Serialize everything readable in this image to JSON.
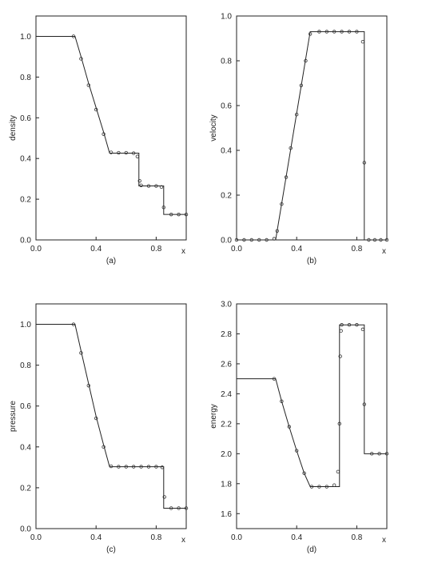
{
  "chart_data": [
    {
      "type": "line",
      "caption": "(a)",
      "xlabel": "x",
      "ylabel": "density",
      "xlim": [
        0,
        1
      ],
      "ylim": [
        0,
        1.1
      ],
      "xticks": [
        "0.0",
        "0.4",
        "0.8"
      ],
      "xtick_values": [
        0,
        0.4,
        0.8
      ],
      "yticks": [
        "0.0",
        "0.2",
        "0.4",
        "0.6",
        "0.8",
        "1.0"
      ],
      "ytick_values": [
        0,
        0.2,
        0.4,
        0.6,
        0.8,
        1.0
      ],
      "series": [
        {
          "style": "solid-line",
          "x": [
            0,
            0.26,
            0.3,
            0.35,
            0.4,
            0.45,
            0.49,
            0.685,
            0.685,
            0.85,
            0.85,
            1.0
          ],
          "y": [
            1.0,
            1.0,
            0.9,
            0.77,
            0.65,
            0.53,
            0.426,
            0.426,
            0.265,
            0.265,
            0.125,
            0.125
          ]
        },
        {
          "style": "markers",
          "x": [
            0.25,
            0.3,
            0.35,
            0.4,
            0.45,
            0.5,
            0.55,
            0.6,
            0.65,
            0.675,
            0.69,
            0.7,
            0.75,
            0.8,
            0.835,
            0.85,
            0.9,
            0.95,
            1.0
          ],
          "y": [
            1.0,
            0.89,
            0.76,
            0.64,
            0.52,
            0.43,
            0.428,
            0.428,
            0.426,
            0.41,
            0.29,
            0.268,
            0.265,
            0.265,
            0.26,
            0.16,
            0.125,
            0.125,
            0.125
          ]
        }
      ]
    },
    {
      "type": "line",
      "caption": "(b)",
      "xlabel": "x",
      "ylabel": "velocity",
      "xlim": [
        0,
        1
      ],
      "ylim": [
        0,
        1.0
      ],
      "xticks": [
        "0.0",
        "0.4",
        "0.8"
      ],
      "xtick_values": [
        0,
        0.4,
        0.8
      ],
      "yticks": [
        "0.0",
        "0.2",
        "0.4",
        "0.6",
        "0.8",
        "1.0"
      ],
      "ytick_values": [
        0,
        0.2,
        0.4,
        0.6,
        0.8,
        1.0
      ],
      "series": [
        {
          "style": "solid-line",
          "x": [
            0,
            0.26,
            0.49,
            0.85,
            0.85,
            1.0
          ],
          "y": [
            0,
            0,
            0.93,
            0.93,
            0,
            0
          ]
        },
        {
          "style": "markers",
          "x": [
            0,
            0.05,
            0.1,
            0.15,
            0.2,
            0.25,
            0.27,
            0.3,
            0.33,
            0.36,
            0.4,
            0.43,
            0.46,
            0.49,
            0.55,
            0.6,
            0.65,
            0.7,
            0.75,
            0.8,
            0.84,
            0.85,
            0.88,
            0.92,
            0.96,
            1.0
          ],
          "y": [
            0,
            0,
            0,
            0,
            0,
            0.005,
            0.04,
            0.16,
            0.28,
            0.41,
            0.56,
            0.69,
            0.8,
            0.92,
            0.93,
            0.93,
            0.93,
            0.93,
            0.93,
            0.93,
            0.885,
            0.345,
            0,
            0,
            0,
            0
          ]
        }
      ]
    },
    {
      "type": "line",
      "caption": "(c)",
      "xlabel": "x",
      "ylabel": "pressure",
      "xlim": [
        0,
        1
      ],
      "ylim": [
        0,
        1.1
      ],
      "xticks": [
        "0.0",
        "0.4",
        "0.8"
      ],
      "xtick_values": [
        0,
        0.4,
        0.8
      ],
      "yticks": [
        "0.0",
        "0.2",
        "0.4",
        "0.6",
        "0.8",
        "1.0"
      ],
      "ytick_values": [
        0,
        0.2,
        0.4,
        0.6,
        0.8,
        1.0
      ],
      "series": [
        {
          "style": "solid-line",
          "x": [
            0,
            0.26,
            0.3,
            0.35,
            0.4,
            0.45,
            0.49,
            0.85,
            0.85,
            1.0
          ],
          "y": [
            1.0,
            1.0,
            0.87,
            0.71,
            0.55,
            0.41,
            0.303,
            0.303,
            0.1,
            0.1
          ]
        },
        {
          "style": "markers",
          "x": [
            0.25,
            0.3,
            0.35,
            0.4,
            0.45,
            0.5,
            0.55,
            0.6,
            0.65,
            0.7,
            0.75,
            0.8,
            0.84,
            0.855,
            0.9,
            0.95,
            1.0
          ],
          "y": [
            1.0,
            0.86,
            0.7,
            0.54,
            0.4,
            0.305,
            0.303,
            0.303,
            0.303,
            0.303,
            0.303,
            0.303,
            0.3,
            0.155,
            0.1,
            0.1,
            0.1
          ]
        }
      ]
    },
    {
      "type": "line",
      "caption": "(d)",
      "xlabel": "x",
      "ylabel": "energy",
      "xlim": [
        0,
        1
      ],
      "ylim": [
        1.5,
        3.0
      ],
      "xticks": [
        "0.0",
        "0.4",
        "0.8"
      ],
      "xtick_values": [
        0,
        0.4,
        0.8
      ],
      "yticks": [
        "1.6",
        "1.8",
        "2.0",
        "2.2",
        "2.4",
        "2.6",
        "2.8",
        "3.0"
      ],
      "ytick_values": [
        1.6,
        1.8,
        2.0,
        2.2,
        2.4,
        2.6,
        2.8,
        3.0
      ],
      "series": [
        {
          "style": "solid-line",
          "x": [
            0,
            0.26,
            0.3,
            0.35,
            0.4,
            0.45,
            0.49,
            0.685,
            0.685,
            0.85,
            0.85,
            1.0
          ],
          "y": [
            2.5,
            2.5,
            2.35,
            2.18,
            2.02,
            1.87,
            1.78,
            1.78,
            2.86,
            2.86,
            2.0,
            2.0
          ]
        },
        {
          "style": "markers",
          "x": [
            0.25,
            0.3,
            0.35,
            0.4,
            0.45,
            0.5,
            0.55,
            0.6,
            0.65,
            0.675,
            0.685,
            0.69,
            0.695,
            0.7,
            0.75,
            0.8,
            0.84,
            0.85,
            0.9,
            0.95,
            1.0
          ],
          "y": [
            2.5,
            2.35,
            2.18,
            2.02,
            1.87,
            1.78,
            1.78,
            1.78,
            1.79,
            1.88,
            2.2,
            2.65,
            2.82,
            2.86,
            2.86,
            2.86,
            2.83,
            2.33,
            2.0,
            2.0,
            2.0
          ]
        }
      ]
    }
  ]
}
